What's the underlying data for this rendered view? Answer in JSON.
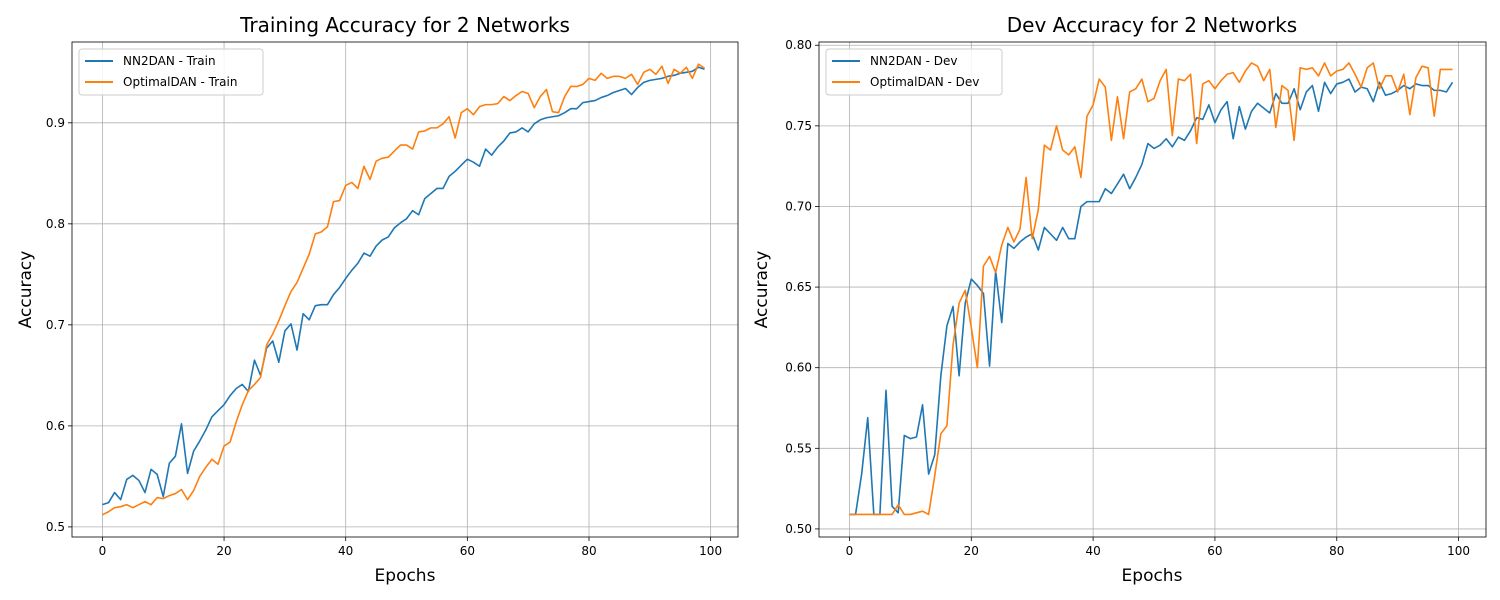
{
  "figure": {
    "background": "#ffffff"
  },
  "chart_data": [
    {
      "type": "line",
      "title": "Training Accuracy for 2 Networks",
      "xlabel": "Epochs",
      "ylabel": "Accuracy",
      "xlim": [
        -5,
        104.5
      ],
      "ylim": [
        0.49,
        0.98
      ],
      "xticks": [
        0,
        20,
        40,
        60,
        80,
        100
      ],
      "yticks": [
        0.5,
        0.6,
        0.7,
        0.8,
        0.9
      ],
      "xtick_labels": [
        "0",
        "20",
        "40",
        "60",
        "80",
        "100"
      ],
      "ytick_labels": [
        "0.5",
        "0.6",
        "0.7",
        "0.8",
        "0.9"
      ],
      "grid": true,
      "legend": "upper-left",
      "series": [
        {
          "name": "NN2DAN - Train",
          "color": "#1f77b4",
          "values": [
            0.522,
            0.524,
            0.534,
            0.527,
            0.547,
            0.551,
            0.546,
            0.534,
            0.557,
            0.552,
            0.53,
            0.563,
            0.57,
            0.602,
            0.553,
            0.575,
            0.585,
            0.596,
            0.609,
            0.615,
            0.621,
            0.63,
            0.637,
            0.641,
            0.634,
            0.665,
            0.65,
            0.677,
            0.684,
            0.663,
            0.694,
            0.701,
            0.675,
            0.711,
            0.705,
            0.719,
            0.72,
            0.72,
            0.73,
            0.737,
            0.746,
            0.754,
            0.761,
            0.771,
            0.768,
            0.778,
            0.784,
            0.787,
            0.796,
            0.801,
            0.805,
            0.813,
            0.809,
            0.825,
            0.83,
            0.835,
            0.835,
            0.847,
            0.852,
            0.858,
            0.864,
            0.861,
            0.857,
            0.874,
            0.868,
            0.876,
            0.882,
            0.89,
            0.891,
            0.895,
            0.891,
            0.899,
            0.903,
            0.905,
            0.906,
            0.907,
            0.91,
            0.914,
            0.914,
            0.92,
            0.921,
            0.922,
            0.925,
            0.927,
            0.93,
            0.932,
            0.934,
            0.928,
            0.935,
            0.94,
            0.942,
            0.943,
            0.944,
            0.946,
            0.947,
            0.949,
            0.95,
            0.951,
            0.955,
            0.953
          ]
        },
        {
          "name": "OptimalDAN - Train",
          "color": "#ff7f0e",
          "values": [
            0.512,
            0.515,
            0.519,
            0.52,
            0.522,
            0.519,
            0.522,
            0.525,
            0.522,
            0.529,
            0.528,
            0.531,
            0.533,
            0.537,
            0.527,
            0.536,
            0.55,
            0.559,
            0.567,
            0.562,
            0.58,
            0.584,
            0.604,
            0.621,
            0.635,
            0.641,
            0.648,
            0.68,
            0.691,
            0.704,
            0.719,
            0.733,
            0.742,
            0.756,
            0.77,
            0.79,
            0.792,
            0.797,
            0.822,
            0.823,
            0.838,
            0.841,
            0.835,
            0.857,
            0.844,
            0.862,
            0.865,
            0.866,
            0.872,
            0.878,
            0.878,
            0.874,
            0.891,
            0.892,
            0.895,
            0.895,
            0.899,
            0.906,
            0.885,
            0.91,
            0.914,
            0.908,
            0.916,
            0.918,
            0.918,
            0.919,
            0.926,
            0.922,
            0.927,
            0.931,
            0.929,
            0.915,
            0.926,
            0.933,
            0.911,
            0.91,
            0.926,
            0.936,
            0.936,
            0.938,
            0.944,
            0.942,
            0.949,
            0.944,
            0.946,
            0.946,
            0.944,
            0.948,
            0.938,
            0.95,
            0.953,
            0.948,
            0.956,
            0.939,
            0.953,
            0.949,
            0.955,
            0.944,
            0.958,
            0.954
          ]
        }
      ]
    },
    {
      "type": "line",
      "title": "Dev Accuracy for 2 Networks",
      "xlabel": "Epochs",
      "ylabel": "Accuracy",
      "xlim": [
        -5,
        104.5
      ],
      "ylim": [
        0.495,
        0.802
      ],
      "xticks": [
        0,
        20,
        40,
        60,
        80,
        100
      ],
      "yticks": [
        0.5,
        0.55,
        0.6,
        0.65,
        0.7,
        0.75,
        0.8
      ],
      "xtick_labels": [
        "0",
        "20",
        "40",
        "60",
        "80",
        "100"
      ],
      "ytick_labels": [
        "0.50",
        "0.55",
        "0.60",
        "0.65",
        "0.70",
        "0.75",
        "0.80"
      ],
      "grid": true,
      "legend": "upper-left",
      "series": [
        {
          "name": "NN2DAN - Dev",
          "color": "#1f77b4",
          "values": [
            0.509,
            0.509,
            0.534,
            0.569,
            0.509,
            0.509,
            0.586,
            0.514,
            0.51,
            0.558,
            0.556,
            0.557,
            0.577,
            0.534,
            0.546,
            0.595,
            0.626,
            0.638,
            0.595,
            0.64,
            0.655,
            0.651,
            0.646,
            0.601,
            0.66,
            0.628,
            0.677,
            0.674,
            0.678,
            0.681,
            0.683,
            0.673,
            0.687,
            0.683,
            0.679,
            0.687,
            0.68,
            0.68,
            0.7,
            0.703,
            0.703,
            0.703,
            0.711,
            0.708,
            0.714,
            0.72,
            0.711,
            0.718,
            0.726,
            0.739,
            0.736,
            0.738,
            0.742,
            0.737,
            0.743,
            0.741,
            0.747,
            0.755,
            0.754,
            0.763,
            0.752,
            0.76,
            0.765,
            0.742,
            0.762,
            0.748,
            0.759,
            0.764,
            0.761,
            0.758,
            0.77,
            0.764,
            0.764,
            0.773,
            0.76,
            0.771,
            0.775,
            0.759,
            0.777,
            0.77,
            0.776,
            0.777,
            0.779,
            0.771,
            0.774,
            0.773,
            0.765,
            0.777,
            0.769,
            0.77,
            0.772,
            0.775,
            0.773,
            0.776,
            0.775,
            0.775,
            0.772,
            0.772,
            0.771,
            0.777
          ]
        },
        {
          "name": "OptimalDAN - Dev",
          "color": "#ff7f0e",
          "values": [
            0.509,
            0.509,
            0.509,
            0.509,
            0.509,
            0.509,
            0.509,
            0.509,
            0.515,
            0.509,
            0.509,
            0.51,
            0.511,
            0.509,
            0.533,
            0.559,
            0.564,
            0.614,
            0.64,
            0.648,
            0.625,
            0.6,
            0.663,
            0.669,
            0.659,
            0.676,
            0.687,
            0.678,
            0.686,
            0.718,
            0.68,
            0.698,
            0.738,
            0.735,
            0.75,
            0.735,
            0.732,
            0.737,
            0.718,
            0.756,
            0.763,
            0.779,
            0.774,
            0.741,
            0.768,
            0.742,
            0.771,
            0.773,
            0.779,
            0.765,
            0.767,
            0.778,
            0.785,
            0.744,
            0.779,
            0.778,
            0.782,
            0.739,
            0.776,
            0.778,
            0.773,
            0.778,
            0.782,
            0.783,
            0.777,
            0.784,
            0.789,
            0.787,
            0.778,
            0.785,
            0.749,
            0.775,
            0.772,
            0.741,
            0.786,
            0.785,
            0.786,
            0.781,
            0.789,
            0.781,
            0.784,
            0.785,
            0.789,
            0.782,
            0.774,
            0.786,
            0.789,
            0.773,
            0.781,
            0.781,
            0.771,
            0.782,
            0.757,
            0.78,
            0.787,
            0.786,
            0.756,
            0.785,
            0.785,
            0.785
          ]
        }
      ]
    }
  ]
}
